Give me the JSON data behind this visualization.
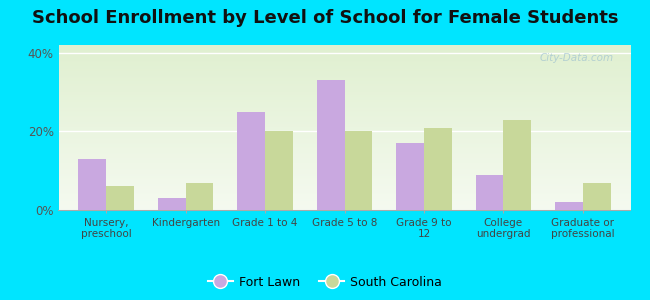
{
  "title": "School Enrollment by Level of School for Female Students",
  "categories": [
    "Nursery,\npreschool",
    "Kindergarten",
    "Grade 1 to 4",
    "Grade 5 to 8",
    "Grade 9 to\n12",
    "College\nundergrad",
    "Graduate or\nprofessional"
  ],
  "fort_lawn": [
    13,
    3,
    25,
    33,
    17,
    9,
    2
  ],
  "south_carolina": [
    6,
    7,
    20,
    20,
    21,
    23,
    7
  ],
  "fort_lawn_color": "#c9a8e0",
  "south_carolina_color": "#c8d89a",
  "background_color": "#00e5ff",
  "plot_bg_color": "#edf5e1",
  "title_fontsize": 13,
  "ylim": [
    0,
    42
  ],
  "yticks": [
    0,
    20,
    40
  ],
  "ytick_labels": [
    "0%",
    "20%",
    "40%"
  ],
  "watermark": "City-Data.com",
  "legend_fort_lawn": "Fort Lawn",
  "legend_south_carolina": "South Carolina"
}
